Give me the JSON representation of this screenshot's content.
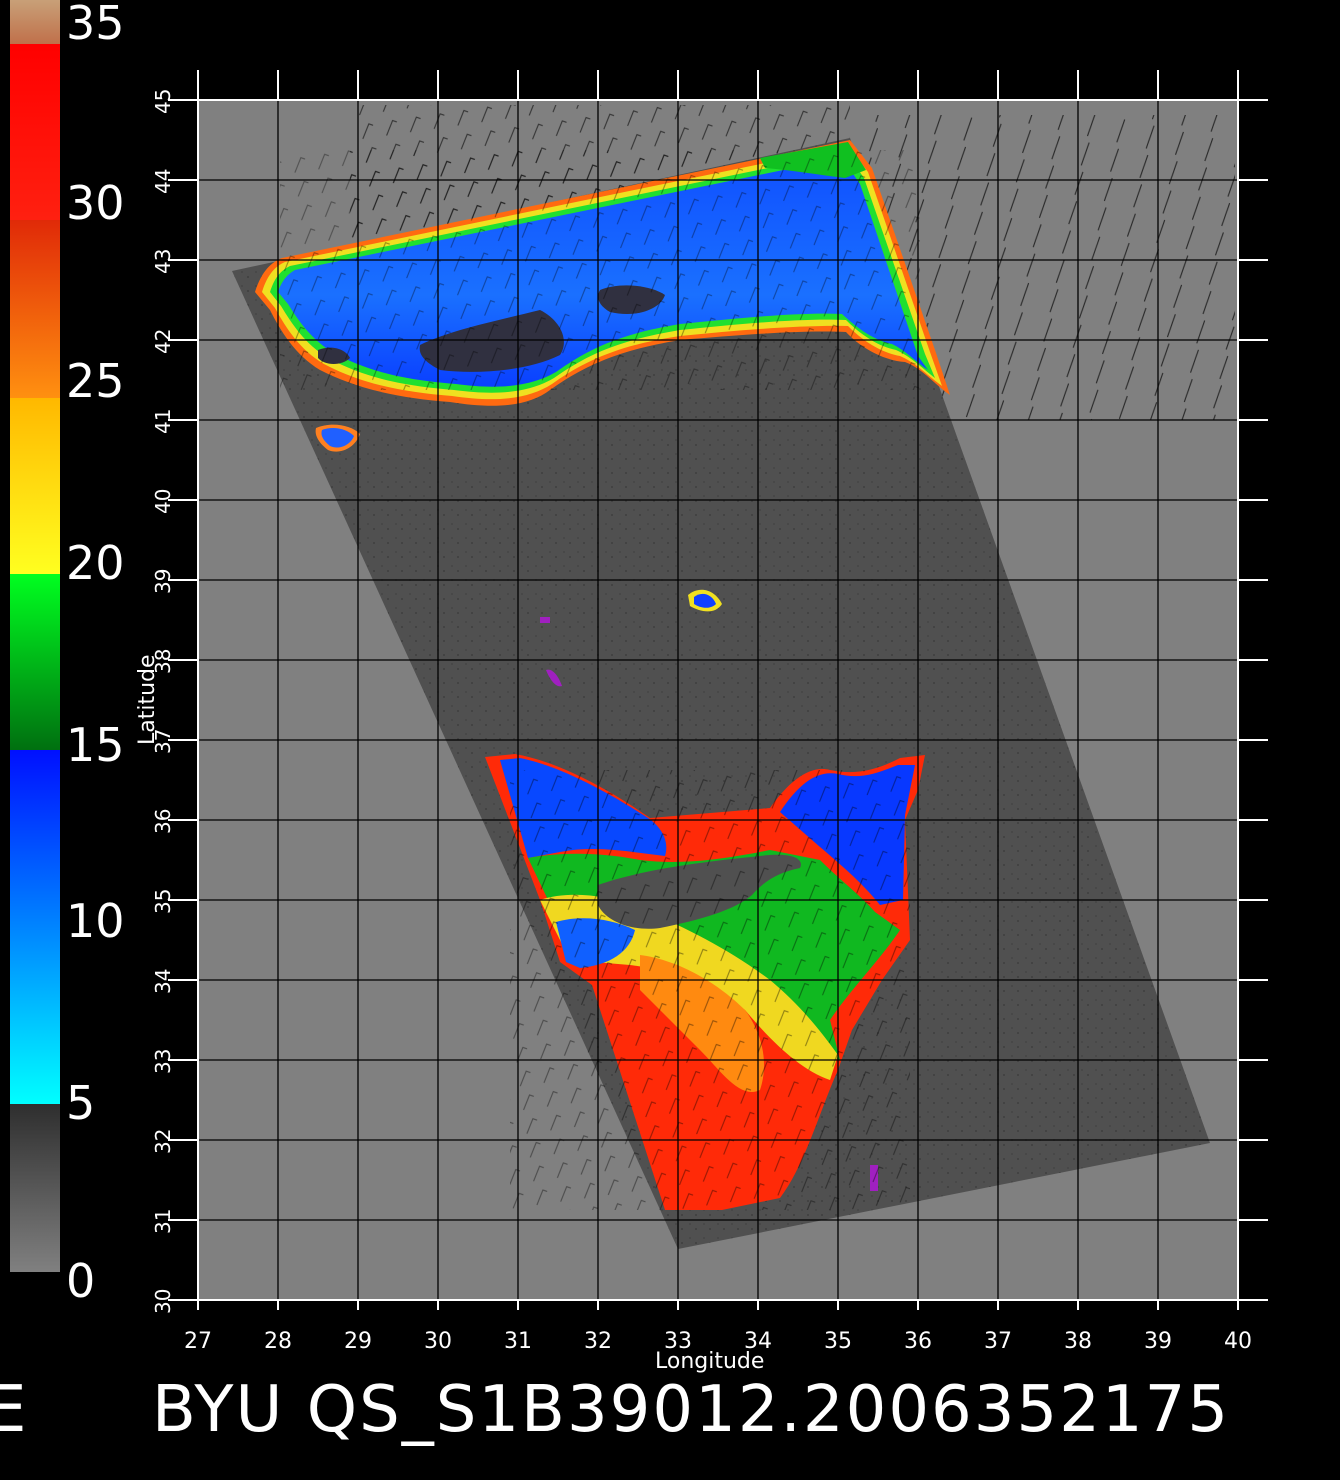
{
  "colorbar": {
    "labels": [
      "0",
      "5",
      "10",
      "15",
      "20",
      "25",
      "30",
      "35"
    ],
    "colors": {
      "gray_bottom": "#808080",
      "gray_top": "#303030",
      "cyan": "#00ffff",
      "blue": "#0030ff",
      "green_dark": "#007a10",
      "green": "#00ff20",
      "yellow": "#ffff20",
      "orange": "#ff8a10",
      "red_orange": "#ff3010",
      "red": "#ff0000",
      "tan": "#c88a5a"
    }
  },
  "map": {
    "x_label": "Longitude",
    "y_label": "Latitude",
    "lon_ticks": [
      "27",
      "28",
      "29",
      "30",
      "31",
      "32",
      "33",
      "34",
      "35",
      "36",
      "37",
      "38",
      "39",
      "40"
    ],
    "lat_ticks": [
      "30",
      "31",
      "32",
      "33",
      "34",
      "35",
      "36",
      "37",
      "38",
      "39",
      "40",
      "41",
      "42",
      "43",
      "44",
      "45"
    ],
    "lon_range": [
      27,
      40
    ],
    "lat_range": [
      30,
      45
    ],
    "colors": {
      "background": "#808080",
      "swath": "#505050",
      "grid": "#000000",
      "frame": "#ffffff"
    }
  },
  "footer": {
    "title": "BYU  QS_S1B39012.2006352175",
    "left_fragment": "E"
  }
}
